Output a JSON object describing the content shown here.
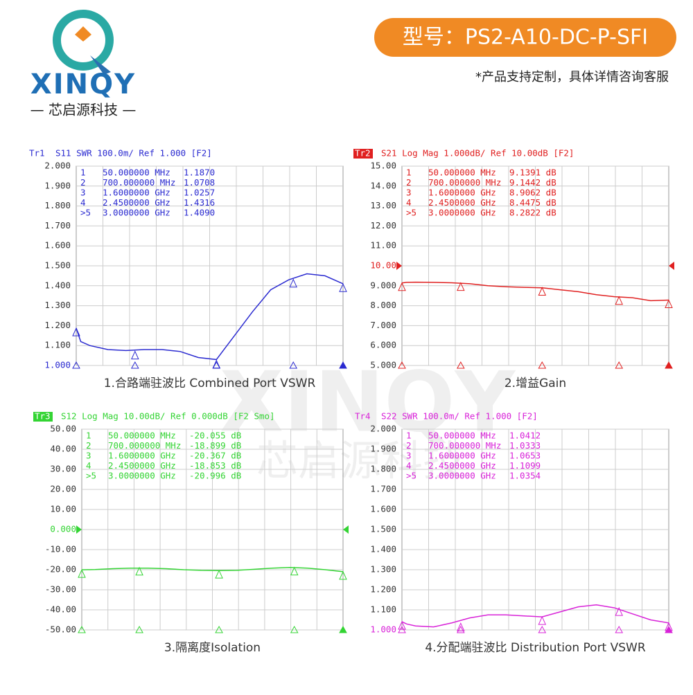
{
  "header": {
    "brand": "XINQY",
    "company": "— 芯启源科技 —",
    "model": "型号：PS2-A10-DC-P-SFI",
    "note": "*产品支持定制，具体详情咨询客服"
  },
  "watermark": {
    "brand": "XINQY",
    "company": "芯启源科技"
  },
  "chart_data": [
    {
      "type": "line",
      "trace": "Tr1",
      "trace_box": false,
      "title": "S11 SWR 100.0m/ Ref 1.000 [F2]",
      "caption": "1.合路端驻波比 Combined Port VSWR",
      "color": "#2a2ad0",
      "ylim": [
        1,
        2
      ],
      "yticks": [
        {
          "value": 1,
          "label": "1.000"
        },
        {
          "value": 1.1,
          "label": "1.100"
        },
        {
          "value": 1.2,
          "label": "1.200"
        },
        {
          "value": 1.3,
          "label": "1.300"
        },
        {
          "value": 1.4,
          "label": "1.400"
        },
        {
          "value": 1.5,
          "label": "1.500"
        },
        {
          "value": 1.6,
          "label": "1.600"
        },
        {
          "value": 1.7,
          "label": "1.700"
        },
        {
          "value": 1.8,
          "label": "1.800"
        },
        {
          "value": 1.9,
          "label": "1.900"
        },
        {
          "value": 2,
          "label": "2.000"
        }
      ],
      "ref_tick": 0,
      "xlim": [
        50,
        3000
      ],
      "series": [
        {
          "name": "S11",
          "x": [
            50,
            100,
            200,
            400,
            600,
            800,
            1000,
            1200,
            1400,
            1600,
            1800,
            2000,
            2200,
            2400,
            2600,
            2800,
            3000
          ],
          "values": [
            1.187,
            1.12,
            1.1,
            1.08,
            1.075,
            1.08,
            1.08,
            1.07,
            1.04,
            1.03,
            1.15,
            1.27,
            1.38,
            1.43,
            1.46,
            1.45,
            1.41
          ]
        }
      ],
      "markers": {
        "labels": [
          "1",
          "2",
          "3",
          "4",
          ">5"
        ],
        "x": [
          50,
          700,
          1600,
          2450,
          3000
        ],
        "x_labels": [
          "50.000000 MHz",
          "700.000000 MHz",
          "1.6000000 GHz",
          "2.4500000 GHz",
          "3.0000000 GHz"
        ],
        "values": [
          1.187,
          1.0708,
          1.0257,
          1.4316,
          1.409
        ],
        "value_labels": [
          "1.1870",
          "1.0708",
          "1.0257",
          "1.4316",
          "1.4090"
        ]
      }
    },
    {
      "type": "line",
      "trace": "Tr2",
      "trace_box": true,
      "title": "S21 Log Mag 1.000dB/ Ref 10.00dB [F2]",
      "caption": "2.增益Gain",
      "color": "#e02020",
      "ylim": [
        5,
        15
      ],
      "yticks": [
        {
          "value": 5,
          "label": "5.000"
        },
        {
          "value": 6,
          "label": "6.000"
        },
        {
          "value": 7,
          "label": "7.000"
        },
        {
          "value": 8,
          "label": "8.000"
        },
        {
          "value": 9,
          "label": "9.000"
        },
        {
          "value": 10,
          "label": "10.00"
        },
        {
          "value": 11,
          "label": "11.00"
        },
        {
          "value": 12,
          "label": "12.00"
        },
        {
          "value": 13,
          "label": "13.00"
        },
        {
          "value": 14,
          "label": "14.00"
        },
        {
          "value": 15,
          "label": "15.00"
        }
      ],
      "ref_tick": 5,
      "xlim": [
        50,
        3000
      ],
      "series": [
        {
          "name": "S21",
          "x": [
            50,
            100,
            200,
            400,
            600,
            800,
            1000,
            1200,
            1400,
            1600,
            1800,
            2000,
            2200,
            2400,
            2600,
            2800,
            3000
          ],
          "values": [
            9.14,
            9.17,
            9.18,
            9.17,
            9.15,
            9.1,
            9.0,
            8.95,
            8.92,
            8.9,
            8.8,
            8.7,
            8.55,
            8.45,
            8.4,
            8.25,
            8.28
          ]
        }
      ],
      "markers": {
        "labels": [
          "1",
          "2",
          "3",
          "4",
          ">5"
        ],
        "x": [
          50,
          700,
          1600,
          2450,
          3000
        ],
        "x_labels": [
          "50.000000 MHz",
          "700.000000 MHz",
          "1.6000000 GHz",
          "2.4500000 GHz",
          "3.0000000 GHz"
        ],
        "values": [
          9.1391,
          9.1442,
          8.9062,
          8.4475,
          8.2822
        ],
        "value_labels": [
          "9.1391 dB",
          "9.1442 dB",
          "8.9062 dB",
          "8.4475 dB",
          "8.2822 dB"
        ]
      }
    },
    {
      "type": "line",
      "trace": "Tr3",
      "trace_box": true,
      "title": "S12 Log Mag 10.00dB/ Ref 0.000dB [F2 Smo]",
      "caption": "3.隔离度Isolation",
      "color": "#33d433",
      "ylim": [
        -50,
        50
      ],
      "yticks": [
        {
          "value": -50,
          "label": "-50.00"
        },
        {
          "value": -40,
          "label": "-40.00"
        },
        {
          "value": -30,
          "label": "-30.00"
        },
        {
          "value": -20,
          "label": "-20.00"
        },
        {
          "value": -10,
          "label": "-10.00"
        },
        {
          "value": 0,
          "label": "0.000"
        },
        {
          "value": 10,
          "label": "10.00"
        },
        {
          "value": 20,
          "label": "20.00"
        },
        {
          "value": 30,
          "label": "30.00"
        },
        {
          "value": 40,
          "label": "40.00"
        },
        {
          "value": 50,
          "label": "50.00"
        }
      ],
      "ref_tick": 5,
      "xlim": [
        50,
        3000
      ],
      "series": [
        {
          "name": "S12",
          "x": [
            50,
            100,
            200,
            400,
            600,
            800,
            1000,
            1200,
            1400,
            1600,
            1800,
            2000,
            2200,
            2400,
            2600,
            2800,
            3000
          ],
          "values": [
            -20.05,
            -20,
            -19.9,
            -19.5,
            -19.2,
            -19.2,
            -19.5,
            -20,
            -20.3,
            -20.4,
            -20.3,
            -19.8,
            -19.2,
            -18.9,
            -19.2,
            -20,
            -21
          ]
        }
      ],
      "markers": {
        "labels": [
          "1",
          "2",
          "3",
          "4",
          ">5"
        ],
        "x": [
          50,
          700,
          1600,
          2450,
          3000
        ],
        "x_labels": [
          "50.000000 MHz",
          "700.000000 MHz",
          "1.6000000 GHz",
          "2.4500000 GHz",
          "3.0000000 GHz"
        ],
        "values": [
          -20.055,
          -18.899,
          -20.367,
          -18.853,
          -20.996
        ],
        "value_labels": [
          "-20.055 dB",
          "-18.899 dB",
          "-20.367 dB",
          "-18.853 dB",
          "-20.996 dB"
        ]
      }
    },
    {
      "type": "line",
      "trace": "Tr4",
      "trace_box": false,
      "title": "S22 SWR 100.0m/ Ref 1.000 [F2]",
      "caption": "4.分配端驻波比 Distribution  Port VSWR",
      "color": "#d822d8",
      "ylim": [
        1,
        2
      ],
      "yticks": [
        {
          "value": 1,
          "label": "1.000"
        },
        {
          "value": 1.1,
          "label": "1.100"
        },
        {
          "value": 1.2,
          "label": "1.200"
        },
        {
          "value": 1.3,
          "label": "1.300"
        },
        {
          "value": 1.4,
          "label": "1.400"
        },
        {
          "value": 1.5,
          "label": "1.500"
        },
        {
          "value": 1.6,
          "label": "1.600"
        },
        {
          "value": 1.7,
          "label": "1.700"
        },
        {
          "value": 1.8,
          "label": "1.800"
        },
        {
          "value": 1.9,
          "label": "1.900"
        },
        {
          "value": 2,
          "label": "2.000"
        }
      ],
      "ref_tick": 0,
      "xlim": [
        50,
        3000
      ],
      "series": [
        {
          "name": "S22",
          "x": [
            50,
            100,
            200,
            400,
            600,
            800,
            1000,
            1200,
            1400,
            1600,
            1800,
            2000,
            2200,
            2400,
            2600,
            2800,
            3000
          ],
          "values": [
            1.041,
            1.03,
            1.02,
            1.015,
            1.035,
            1.06,
            1.075,
            1.075,
            1.07,
            1.065,
            1.09,
            1.115,
            1.125,
            1.11,
            1.08,
            1.05,
            1.035
          ]
        }
      ],
      "markers": {
        "labels": [
          "1",
          "2",
          "3",
          "4",
          ">5"
        ],
        "x": [
          50,
          700,
          1600,
          2450,
          3000
        ],
        "x_labels": [
          "50.000000 MHz",
          "700.000000 MHz",
          "1.6000000 GHz",
          "2.4500000 GHz",
          "3.0000000 GHz"
        ],
        "values": [
          1.0412,
          1.0333,
          1.0653,
          1.1099,
          1.0354
        ],
        "value_labels": [
          "1.0412",
          "1.0333",
          "1.0653",
          "1.1099",
          "1.0354"
        ]
      }
    }
  ]
}
